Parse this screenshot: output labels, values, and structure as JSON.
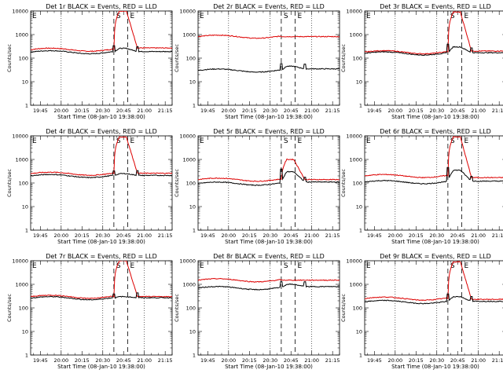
{
  "chart_data": [
    {
      "title": "Det 1r BLACK = Events, RED = LLD",
      "markers": [
        "S",
        "E"
      ],
      "black": {
        "base": 180,
        "peak": 260,
        "after": 190
      },
      "red": {
        "base": 230,
        "peak": 10000,
        "after": 270
      }
    },
    {
      "title": "Det 2r BLACK = Events, RED = LLD",
      "markers": [
        "S",
        "E"
      ],
      "black": {
        "base": 30,
        "peak": 45,
        "after": 35
      },
      "red": {
        "base": 820,
        "peak": 820,
        "after": 820
      }
    },
    {
      "title": "Det 3r BLACK = Events, RED = LLD",
      "markers": [
        "S",
        "E"
      ],
      "black": {
        "base": 160,
        "peak": 300,
        "after": 170
      },
      "red": {
        "base": 180,
        "peak": 9000,
        "after": 200
      }
    },
    {
      "title": "Det 4r BLACK = Events, RED = LLD",
      "markers": [
        "S",
        "E"
      ],
      "black": {
        "base": 200,
        "peak": 250,
        "after": 210
      },
      "red": {
        "base": 250,
        "peak": 9000,
        "after": 260
      }
    },
    {
      "title": "Det 5r BLACK = Events, RED = LLD",
      "markers": [
        "S",
        "E"
      ],
      "black": {
        "base": 95,
        "peak": 300,
        "after": 110
      },
      "red": {
        "base": 140,
        "peak": 1000,
        "after": 140
      }
    },
    {
      "title": "Det 6r BLACK = Events, RED = LLD",
      "markers": [
        "S",
        "E"
      ],
      "black": {
        "base": 110,
        "peak": 350,
        "after": 120
      },
      "red": {
        "base": 200,
        "peak": 9000,
        "after": 170
      }
    },
    {
      "title": "Det 7r BLACK = Events, RED = LLD",
      "markers": [
        "S",
        "E"
      ],
      "black": {
        "base": 260,
        "peak": 300,
        "after": 270
      },
      "red": {
        "base": 300,
        "peak": 10000,
        "after": 300
      }
    },
    {
      "title": "Det 8r BLACK = Events, RED = LLD",
      "markers": [
        "S",
        "E"
      ],
      "black": {
        "base": 700,
        "peak": 1000,
        "after": 800
      },
      "red": {
        "base": 1500,
        "peak": 1500,
        "after": 1500
      }
    },
    {
      "title": "Det 9r BLACK = Events, RED = LLD",
      "markers": [
        "S",
        "E"
      ],
      "black": {
        "base": 180,
        "peak": 300,
        "after": 190
      },
      "red": {
        "base": 250,
        "peak": 9000,
        "after": 230
      }
    }
  ],
  "shared": {
    "type": "line",
    "series": [
      "BLACK = Events",
      "RED = LLD"
    ],
    "series_colors": {
      "events": "#000000",
      "lld": "#dd0000"
    },
    "x_ticks": [
      "19:45",
      "20:00",
      "20:15",
      "20:30",
      "20:45",
      "21:00",
      "21:15"
    ],
    "x_tick_minutes": [
      105,
      120,
      135,
      150,
      165,
      180,
      195
    ],
    "x_range_minutes": [
      98,
      200
    ],
    "xlabel": "Start Time (08-Jan-10 19:38:00)",
    "ylabel": "Counts/sec",
    "y_ticks": [
      "1",
      "10",
      "100",
      "1000",
      "10000"
    ],
    "y_tick_values": [
      1,
      10,
      100,
      1000,
      10000
    ],
    "ylim": [
      1,
      10000
    ],
    "y_scale": "log",
    "dotted_times_minutes": [
      120,
      150,
      180
    ],
    "s_time_minutes": 158,
    "e_time_minutes": 168,
    "attenuator_time_minutes": 175
  }
}
